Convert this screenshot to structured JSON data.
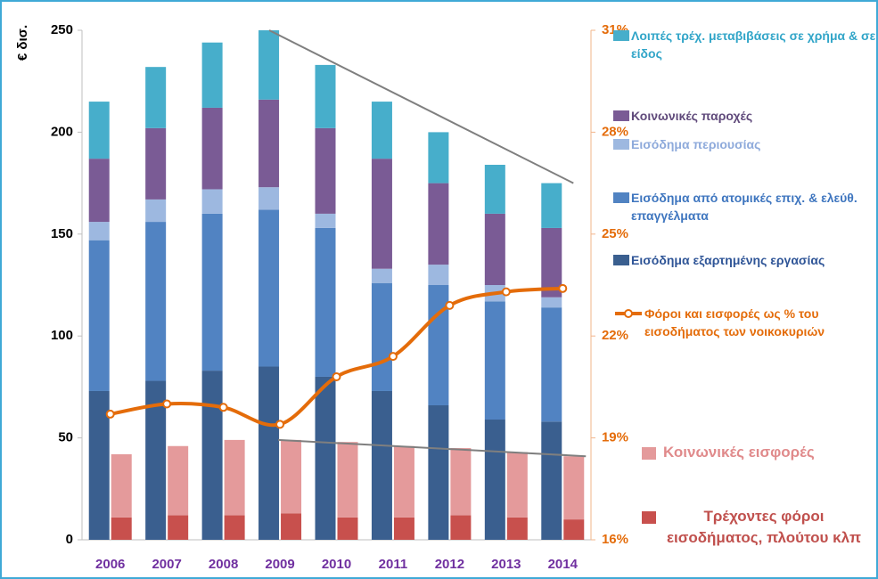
{
  "chart_data": {
    "type": "bar",
    "y_label": "€ δισ.",
    "categories": [
      "2006",
      "2007",
      "2008",
      "2009",
      "2010",
      "2011",
      "2012",
      "2013",
      "2014"
    ],
    "ylim": [
      0,
      250
    ],
    "yticks": [
      0,
      50,
      100,
      150,
      200,
      250
    ],
    "y2lim": [
      16,
      31
    ],
    "y2ticks": [
      {
        "value": 16,
        "label": "16%"
      },
      {
        "value": 19,
        "label": "19%"
      },
      {
        "value": 22,
        "label": "22%"
      },
      {
        "value": 25,
        "label": "25%"
      },
      {
        "value": 28,
        "label": "28%"
      },
      {
        "value": 31,
        "label": "31%"
      }
    ],
    "series": [
      {
        "name": "Εισόδημα εξαρτημένης εργασίας",
        "color": "#3a5f8f",
        "stack": "left",
        "values": [
          73,
          78,
          83,
          85,
          80,
          73,
          66,
          59,
          58
        ]
      },
      {
        "name": "Εισόδημα από ατομικές επιχ. & ελεύθ. επαγγέλματα",
        "color": "#5183c2",
        "stack": "left",
        "values": [
          74,
          78,
          77,
          77,
          73,
          53,
          59,
          58,
          56
        ]
      },
      {
        "name": "Εισόδημα περιουσίας",
        "color": "#9db8e0",
        "stack": "left",
        "values": [
          9,
          11,
          12,
          11,
          7,
          7,
          10,
          8,
          5
        ]
      },
      {
        "name": "Κοινωνικές παροχές",
        "color": "#7a5b95",
        "stack": "left",
        "values": [
          31,
          35,
          40,
          43,
          42,
          54,
          40,
          35,
          34
        ]
      },
      {
        "name": "Λοιπές τρέχ. μεταβιβάσεις σε χρήμα & σε είδος",
        "color": "#47aecb",
        "stack": "left",
        "values": [
          28,
          30,
          32,
          34,
          31,
          28,
          25,
          24,
          22
        ]
      },
      {
        "name": "Τρέχοντες φόροι εισοδήματος, πλούτου κλπ",
        "color": "#c8504d",
        "stack": "right",
        "values": [
          11,
          12,
          12,
          13,
          11,
          11,
          12,
          11,
          10
        ]
      },
      {
        "name": "Κοινωνικές εισφορές",
        "color": "#e49a9b",
        "stack": "right",
        "values": [
          31,
          34,
          37,
          36,
          37,
          35,
          33,
          32,
          31
        ]
      },
      {
        "name": "Φόροι και εισφορές ως % του εισοδήματος των νοικοκυριών",
        "color": "#e46c0a",
        "type": "line",
        "axis": "y2",
        "values": [
          19.7,
          20.0,
          19.9,
          19.4,
          20.8,
          21.4,
          22.9,
          23.3,
          23.4
        ]
      }
    ]
  }
}
